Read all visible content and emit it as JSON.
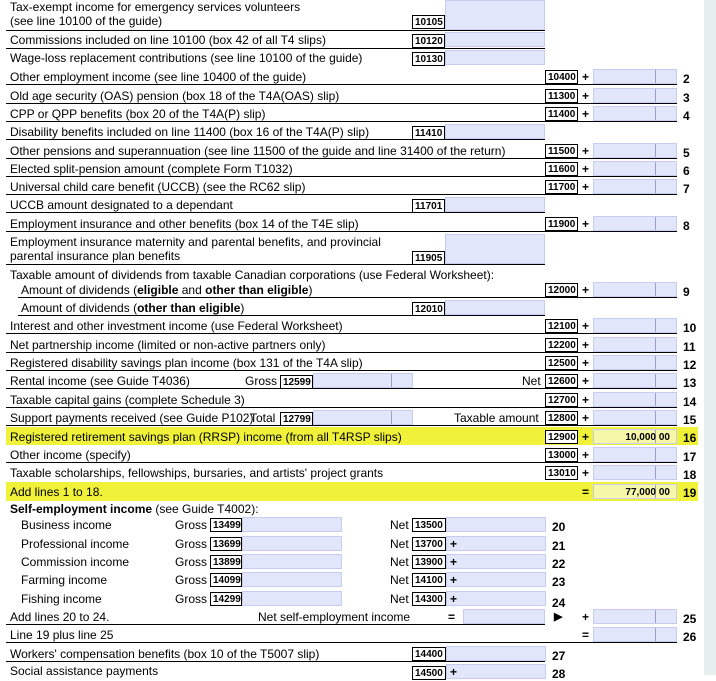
{
  "lines": {
    "tax_exempt": {
      "text1": "Tax-exempt income for emergency services volunteers",
      "text2": "(see line 10100 of the guide)",
      "code": "10105"
    },
    "commissions": {
      "text": "Commissions included on line 10100 (box 42 of all T4 slips)",
      "code": "10120"
    },
    "wage_loss": {
      "text": "Wage-loss replacement contributions (see line 10100 of the guide)",
      "code": "10130"
    },
    "l2": {
      "text": "Other employment income (see line 10400 of the guide)",
      "code": "10400",
      "op": "+",
      "num": "2"
    },
    "l3": {
      "text": "Old age security (OAS) pension (box 18 of the T4A(OAS) slip)",
      "code": "11300",
      "op": "+",
      "num": "3"
    },
    "l4": {
      "text": "CPP or QPP benefits (box 20 of the T4A(P) slip)",
      "code": "11400",
      "op": "+",
      "num": "4"
    },
    "disability": {
      "text": "Disability benefits included on line 11400 (box 16 of the T4A(P) slip)",
      "code": "11410"
    },
    "l5": {
      "text": "Other pensions and superannuation (see line 11500 of the guide and line 31400 of the return)",
      "code": "11500",
      "op": "+",
      "num": "5"
    },
    "l6": {
      "text": "Elected split-pension amount (complete Form T1032)",
      "code": "11600",
      "op": "+",
      "num": "6"
    },
    "l7": {
      "text": "Universal child care benefit (UCCB) (see the RC62 slip)",
      "code": "11700",
      "op": "+",
      "num": "7"
    },
    "uccb_dep": {
      "text": "UCCB amount designated to a dependant",
      "code": "11701"
    },
    "l8": {
      "text": "Employment insurance and other benefits (box 14 of the T4E slip)",
      "code": "11900",
      "op": "+",
      "num": "8"
    },
    "ei_mat": {
      "text1": "Employment insurance maternity and parental benefits, and provincial",
      "text2": "parental insurance plan benefits",
      "code": "11905"
    },
    "dividends_head": {
      "text": "Taxable amount of dividends from taxable Canadian corporations (use Federal Worksheet):"
    },
    "l9": {
      "text_a": "Amount of dividends (",
      "text_b": "eligible",
      "text_c": " and ",
      "text_d": "other than eligible",
      "text_e": ")",
      "code": "12000",
      "op": "+",
      "num": "9"
    },
    "other_elig": {
      "text_a": "Amount of dividends (",
      "text_b": "other than eligible",
      "text_c": ")",
      "code": "12010"
    },
    "l10": {
      "text": "Interest and other investment income (use Federal Worksheet)",
      "code": "12100",
      "op": "+",
      "num": "10"
    },
    "l11": {
      "text": "Net partnership income (limited or non-active partners only)",
      "code": "12200",
      "op": "+",
      "num": "11"
    },
    "l12": {
      "text": "Registered disability savings plan income (box 131 of the T4A slip)",
      "code": "12500",
      "op": "+",
      "num": "12"
    },
    "l13": {
      "text": "Rental income (see Guide T4036)",
      "gross": "Gross",
      "gross_code": "12599",
      "net": "Net",
      "code": "12600",
      "op": "+",
      "num": "13"
    },
    "l14": {
      "text": "Taxable capital gains (complete Schedule 3)",
      "code": "12700",
      "op": "+",
      "num": "14"
    },
    "l15": {
      "text": "Support payments received (see Guide P102)",
      "total": "Total",
      "total_code": "12799",
      "taxable": "Taxable amount",
      "code": "12800",
      "op": "+",
      "num": "15"
    },
    "l16": {
      "text": "Registered retirement savings plan (RRSP) income (from all T4RSP slips)",
      "code": "12900",
      "op": "+",
      "amount": "10,000",
      "cents": "00",
      "num": "16"
    },
    "l17": {
      "text": "Other income  (specify)",
      "code": "13000",
      "op": "+",
      "num": "17"
    },
    "l18": {
      "text": "Taxable scholarships, fellowships, bursaries, and artists' project grants",
      "code": "13010",
      "op": "+",
      "num": "18"
    },
    "l19": {
      "text": "Add lines 1 to 18.",
      "op": "=",
      "amount": "77,000",
      "cents": "00",
      "num": "19"
    },
    "se_head": {
      "text_a": "Self-employment income",
      "text_b": " (see Guide T4002):"
    },
    "l20": {
      "text": "Business income",
      "gross": "Gross",
      "gross_code": "13499",
      "net": "Net",
      "code": "13500",
      "op": "",
      "num": "20"
    },
    "l21": {
      "text": "Professional income",
      "gross": "Gross",
      "gross_code": "13699",
      "net": "Net",
      "code": "13700",
      "op": "+",
      "num": "21"
    },
    "l22": {
      "text": "Commission income",
      "gross": "Gross",
      "gross_code": "13899",
      "net": "Net",
      "code": "13900",
      "op": "+",
      "num": "22"
    },
    "l23": {
      "text": "Farming income",
      "gross": "Gross",
      "gross_code": "14099",
      "net": "Net",
      "code": "14100",
      "op": "+",
      "num": "23"
    },
    "l24": {
      "text": "Fishing income",
      "gross": "Gross",
      "gross_code": "14299",
      "net": "Net",
      "code": "14300",
      "op": "+",
      "num": "24"
    },
    "l25": {
      "text": "Add lines 20 to 24.",
      "mid": "Net self-employment income",
      "op_eq": "=",
      "arrow": "▶",
      "op": "+",
      "num": "25"
    },
    "l26": {
      "text": "Line 19 plus line 25",
      "op": "=",
      "num": "26"
    },
    "l27": {
      "text": "Workers' compensation benefits (box 10 of the T5007 slip)",
      "code": "14400",
      "num": "27"
    },
    "l28": {
      "text": "Social assistance payments",
      "code": "14500",
      "op": "+",
      "num": "28"
    }
  },
  "colors": {
    "highlight": "#f0f23a",
    "field": "#e2e6fb",
    "frame": "#e6efef"
  }
}
